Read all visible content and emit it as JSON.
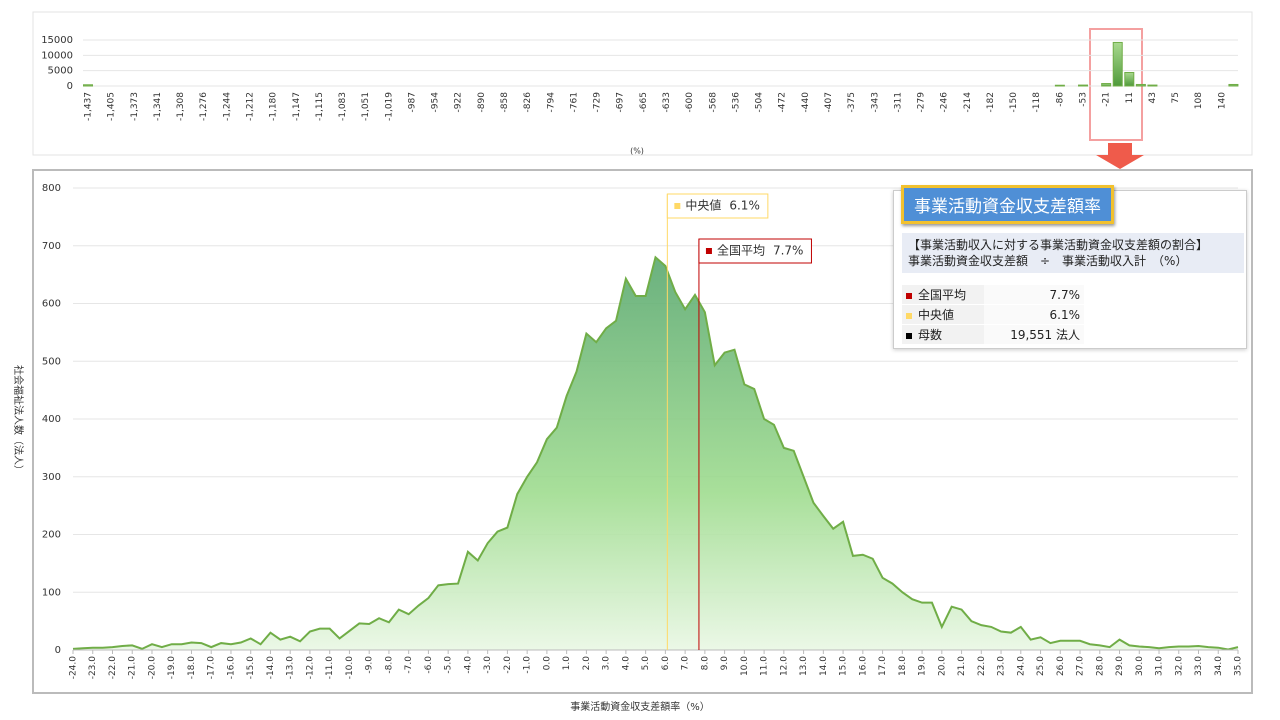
{
  "chart_data": [
    {
      "type": "bar",
      "xlabel": "(%)",
      "color": "#70ad47",
      "categories": [
        "-1,437",
        null,
        "-1,405",
        null,
        "-1,373",
        null,
        "-1,341",
        null,
        "-1,308",
        null,
        "-1,276",
        null,
        "-1,244",
        null,
        "-1,212",
        null,
        "-1,180",
        null,
        "-1,147",
        null,
        "-1,115",
        null,
        "-1,083",
        null,
        "-1,051",
        null,
        "-1,019",
        null,
        "-987",
        null,
        "-954",
        null,
        "-922",
        null,
        "-890",
        null,
        "-858",
        null,
        "-826",
        null,
        "-794",
        null,
        "-761",
        null,
        "-729",
        null,
        "-697",
        null,
        "-665",
        null,
        "-633",
        null,
        "-600",
        null,
        "-568",
        null,
        "-536",
        null,
        "-504",
        null,
        "-472",
        null,
        "-440",
        null,
        "-407",
        null,
        "-375",
        null,
        "-343",
        null,
        "-311",
        null,
        "-279",
        null,
        "-246",
        null,
        "-214",
        null,
        "-182",
        null,
        "-150",
        null,
        "-118",
        null,
        "-86",
        null,
        "-53",
        null,
        "-21",
        null,
        "11",
        null,
        "43",
        null,
        "75",
        null,
        "108",
        null,
        "140",
        null
      ],
      "values": [
        400,
        0,
        0,
        0,
        0,
        0,
        0,
        0,
        0,
        0,
        0,
        0,
        0,
        0,
        0,
        0,
        0,
        0,
        0,
        0,
        0,
        0,
        0,
        0,
        0,
        0,
        0,
        0,
        0,
        0,
        0,
        0,
        0,
        0,
        0,
        0,
        0,
        0,
        0,
        0,
        0,
        0,
        0,
        0,
        0,
        0,
        0,
        0,
        0,
        0,
        0,
        0,
        0,
        0,
        0,
        0,
        0,
        0,
        0,
        0,
        0,
        0,
        0,
        0,
        0,
        0,
        0,
        0,
        0,
        0,
        0,
        0,
        0,
        0,
        0,
        0,
        0,
        0,
        0,
        0,
        0,
        0,
        0,
        0,
        250,
        0,
        300,
        0,
        800,
        14200,
        4400,
        500,
        300,
        0,
        0,
        0,
        0,
        0,
        0,
        500
      ],
      "ylim": [
        0,
        15000
      ],
      "yticks": [
        0,
        5000,
        10000,
        15000
      ],
      "grid": true
    },
    {
      "type": "area",
      "xlabel": "事業活動資金収支差額率（%）",
      "ylabel": "社会福祉法人数（法人）",
      "color": "#70ad47",
      "x": [
        -24,
        -23.5,
        -23,
        -22.5,
        -22,
        -21.5,
        -21,
        -20.5,
        -20,
        -19.5,
        -19,
        -18.5,
        -18,
        -17.5,
        -17,
        -16.5,
        -16,
        -15.5,
        -15,
        -14.5,
        -14,
        -13.5,
        -13,
        -12.5,
        -12,
        -11.5,
        -11,
        -10.5,
        -10,
        -9.5,
        -9,
        -8.5,
        -8,
        -7.5,
        -7,
        -6.5,
        -6,
        -5.5,
        -5,
        -4.5,
        -4,
        -3.5,
        -3,
        -2.5,
        -2,
        -1.5,
        -1,
        -0.5,
        0,
        0.5,
        1,
        1.5,
        2,
        2.5,
        3,
        3.5,
        4,
        4.5,
        5,
        5.5,
        6,
        6.5,
        7,
        7.5,
        8,
        8.5,
        9,
        9.5,
        10,
        10.5,
        11,
        11.5,
        12,
        12.5,
        13,
        13.5,
        14,
        14.5,
        15,
        15.5,
        16,
        16.5,
        17,
        17.5,
        18,
        18.5,
        19,
        19.5,
        20,
        20.5,
        21,
        21.5,
        22,
        22.5,
        23,
        23.5,
        24,
        24.5,
        25,
        25.5,
        26,
        26.5,
        27,
        27.5,
        28,
        28.5,
        29,
        29.5,
        30,
        30.5,
        31,
        31.5,
        32,
        32.5,
        33,
        33.5,
        34,
        34.5,
        35
      ],
      "values": [
        2,
        3,
        4,
        4,
        5,
        7,
        8,
        2,
        10,
        5,
        10,
        10,
        13,
        12,
        5,
        12,
        10,
        13,
        20,
        10,
        30,
        18,
        23,
        15,
        32,
        37,
        37,
        20,
        33,
        46,
        45,
        55,
        48,
        70,
        62,
        77,
        90,
        112,
        114,
        115,
        170,
        155,
        185,
        205,
        212,
        270,
        300,
        325,
        365,
        385,
        440,
        482,
        548,
        533,
        557,
        570,
        643,
        613,
        613,
        680,
        665,
        620,
        590,
        615,
        585,
        493,
        515,
        520,
        460,
        452,
        400,
        390,
        350,
        345,
        300,
        255,
        232,
        210,
        222,
        163,
        165,
        158,
        125,
        115,
        100,
        88,
        82,
        82,
        40,
        75,
        70,
        50,
        43,
        40,
        32,
        30,
        40,
        18,
        22,
        12,
        16,
        16,
        16,
        10,
        8,
        5,
        18,
        8,
        6,
        5,
        3,
        5,
        6,
        6,
        7,
        5,
        4,
        1,
        5
      ],
      "xlim": [
        -24,
        35
      ],
      "xticks": [
        {
          "value": -24,
          "label": "-24.0"
        },
        {
          "value": -23,
          "label": "-23.0"
        },
        {
          "value": -22,
          "label": "-22.0"
        },
        {
          "value": -21,
          "label": "-21.0"
        },
        {
          "value": -20,
          "label": "-20.0"
        },
        {
          "value": -19,
          "label": "-19.0"
        },
        {
          "value": -18,
          "label": "-18.0"
        },
        {
          "value": -17,
          "label": "-17.0"
        },
        {
          "value": -16,
          "label": "-16.0"
        },
        {
          "value": -15,
          "label": "-15.0"
        },
        {
          "value": -14,
          "label": "-14.0"
        },
        {
          "value": -13,
          "label": "-13.0"
        },
        {
          "value": -12,
          "label": "-12.0"
        },
        {
          "value": -11,
          "label": "-11.0"
        },
        {
          "value": -10,
          "label": "-10.0"
        },
        {
          "value": -9,
          "label": "-9.0"
        },
        {
          "value": -8,
          "label": "-8.0"
        },
        {
          "value": -7,
          "label": "-7.0"
        },
        {
          "value": -6,
          "label": "-6.0"
        },
        {
          "value": -5,
          "label": "-5.0"
        },
        {
          "value": -4,
          "label": "-4.0"
        },
        {
          "value": -3,
          "label": "-3.0"
        },
        {
          "value": -2,
          "label": "-2.0"
        },
        {
          "value": -1,
          "label": "-1.0"
        },
        {
          "value": 0,
          "label": "0.0"
        },
        {
          "value": 1,
          "label": "1.0"
        },
        {
          "value": 2,
          "label": "2.0"
        },
        {
          "value": 3,
          "label": "3.0"
        },
        {
          "value": 4,
          "label": "4.0"
        },
        {
          "value": 5,
          "label": "5.0"
        },
        {
          "value": 6,
          "label": "6.0"
        },
        {
          "value": 7,
          "label": "7.0"
        },
        {
          "value": 8,
          "label": "8.0"
        },
        {
          "value": 9,
          "label": "9.0"
        },
        {
          "value": 10,
          "label": "10.0"
        },
        {
          "value": 11,
          "label": "11.0"
        },
        {
          "value": 12,
          "label": "12.0"
        },
        {
          "value": 13,
          "label": "13.0"
        },
        {
          "value": 14,
          "label": "14.0"
        },
        {
          "value": 15,
          "label": "15.0"
        },
        {
          "value": 16,
          "label": "16.0"
        },
        {
          "value": 17,
          "label": "17.0"
        },
        {
          "value": 18,
          "label": "18.0"
        },
        {
          "value": 19,
          "label": "19.0"
        },
        {
          "value": 20,
          "label": "20.0"
        },
        {
          "value": 21,
          "label": "21.0"
        },
        {
          "value": 22,
          "label": "22.0"
        },
        {
          "value": 23,
          "label": "23.0"
        },
        {
          "value": 24,
          "label": "24.0"
        },
        {
          "value": 25,
          "label": "25.0"
        },
        {
          "value": 26,
          "label": "26.0"
        },
        {
          "value": 27,
          "label": "27.0"
        },
        {
          "value": 28,
          "label": "28.0"
        },
        {
          "value": 29,
          "label": "29.0"
        },
        {
          "value": 30,
          "label": "30.0"
        },
        {
          "value": 31,
          "label": "31.0"
        },
        {
          "value": 32,
          "label": "32.0"
        },
        {
          "value": 33,
          "label": "33.0"
        },
        {
          "value": 34,
          "label": "34.0"
        },
        {
          "value": 35,
          "label": "35.0"
        }
      ],
      "ylim": [
        0,
        800
      ],
      "yticks": [
        0,
        100,
        200,
        300,
        400,
        500,
        600,
        700,
        800
      ],
      "grid": true,
      "markers": [
        {
          "name": "中央値",
          "value": 6.1,
          "label": "6.1%",
          "color": "#ffd966"
        },
        {
          "name": "全国平均",
          "value": 7.7,
          "label": "7.7%",
          "color": "#c00000"
        }
      ]
    }
  ],
  "info_panel": {
    "title": "事業活動資金収支差額率",
    "formula": [
      "【事業活動収入に対する事業活動資金収支差額の割合】",
      "事業活動資金収支差額　÷　事業活動収入計　（%）"
    ],
    "count": {
      "label": "母数",
      "value": "19,551 法人",
      "color": "#000000"
    }
  }
}
